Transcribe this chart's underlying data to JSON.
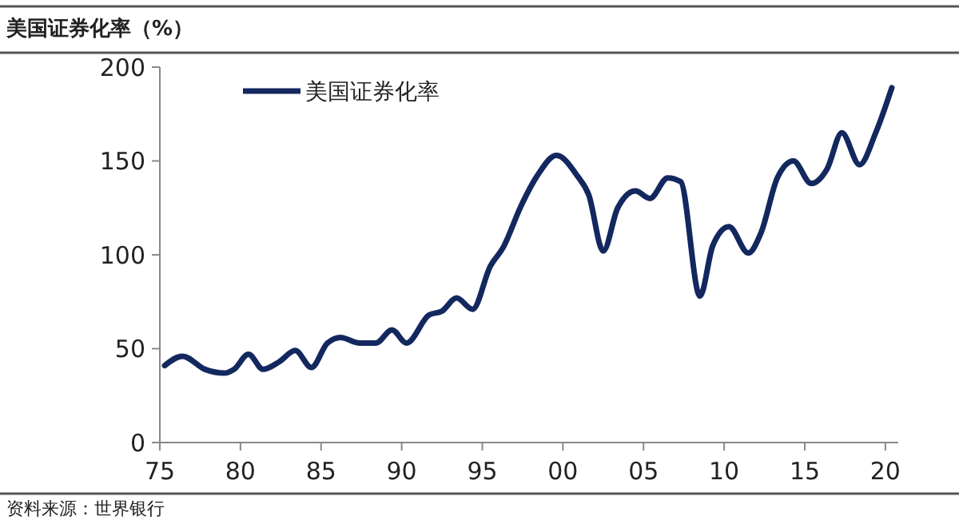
{
  "chart_data": {
    "type": "line",
    "title": "美国证券化率（%）",
    "x": [
      1975.3,
      1976.4,
      1977.8,
      1979,
      1979.6,
      1980.5,
      1981.4,
      1982.4,
      1983.4,
      1984.4,
      1985.4,
      1986.2,
      1987.4,
      1988.4,
      1989.4,
      1990.3,
      1991.7,
      1992.5,
      1993.4,
      1994.4,
      1995.5,
      1996.3,
      1997.4,
      1998.4,
      1999.6,
      2000.9,
      2001.6,
      2002.5,
      2003.4,
      2004.5,
      2005.4,
      2006.5,
      2007.3,
      2008.5,
      2009.3,
      2010.3,
      2011.5,
      2012.3,
      2013.3,
      2014.3,
      2015.4,
      2016.4,
      2017.3,
      2018.4,
      2019.4,
      2020.4
    ],
    "series": [
      {
        "name": "美国证券化率",
        "color": "#13285e",
        "values": [
          41,
          46,
          39,
          37,
          39,
          47,
          39,
          43,
          49,
          40,
          53,
          56,
          53,
          53,
          60,
          53,
          68,
          70,
          77,
          71,
          94,
          104,
          126,
          142,
          153,
          142,
          132,
          102,
          125,
          134,
          130,
          141,
          139,
          78,
          105,
          115,
          101,
          112,
          141,
          150,
          138,
          146,
          165,
          148,
          165,
          189
        ]
      }
    ],
    "xlim": [
      1975,
      2020.8
    ],
    "xticks": [
      {
        "value": 1975,
        "label": "75"
      },
      {
        "value": 1980,
        "label": "80"
      },
      {
        "value": 1985,
        "label": "85"
      },
      {
        "value": 1990,
        "label": "90"
      },
      {
        "value": 1995,
        "label": "95"
      },
      {
        "value": 2000,
        "label": "00"
      },
      {
        "value": 2005,
        "label": "05"
      },
      {
        "value": 2010,
        "label": "10"
      },
      {
        "value": 2015,
        "label": "15"
      },
      {
        "value": 2020,
        "label": "20"
      }
    ],
    "ylim": [
      0,
      200
    ],
    "yticks": [
      0,
      50,
      100,
      150,
      200
    ],
    "grid": false,
    "legend": "top left",
    "marker": "none",
    "line_style": "solid",
    "annotations": [
      "资料来源：世界银行"
    ]
  }
}
